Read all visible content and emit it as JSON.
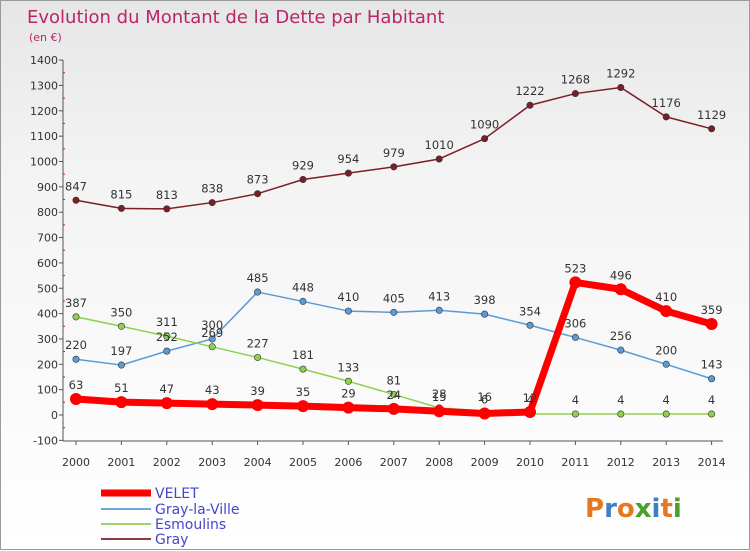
{
  "chart_data": {
    "type": "line",
    "title": "Evolution du Montant de la Dette par Habitant",
    "subtitle": "(en €)",
    "ylim": [
      -100,
      1400
    ],
    "yticks": [
      -100,
      0,
      100,
      200,
      300,
      400,
      500,
      600,
      700,
      800,
      900,
      1000,
      1100,
      1200,
      1300,
      1400
    ],
    "categories": [
      "2000",
      "2001",
      "2002",
      "2003",
      "2004",
      "2005",
      "2006",
      "2007",
      "2008",
      "2009",
      "2010",
      "2011",
      "2012",
      "2013",
      "2014"
    ],
    "grid": false,
    "legend_position": "bottom-left",
    "series": [
      {
        "name": "VELET",
        "color": "#ff0000",
        "weight": "thick",
        "values": [
          63,
          51,
          47,
          43,
          39,
          35,
          29,
          24,
          15,
          6,
          12,
          523,
          496,
          410,
          359
        ],
        "labels": [
          "63",
          "51",
          "47",
          "43",
          "39",
          "35",
          "29",
          "24",
          "15",
          "6",
          "12",
          "523",
          "496",
          "410",
          "359"
        ]
      },
      {
        "name": "Gray-la-Ville",
        "color": "#5b9bd5",
        "weight": "thin",
        "values": [
          220,
          197,
          252,
          300,
          485,
          448,
          410,
          405,
          413,
          398,
          354,
          306,
          256,
          200,
          143
        ],
        "labels": [
          "220",
          "197",
          "252",
          "300",
          "485",
          "448",
          "410",
          "405",
          "413",
          "398",
          "354",
          "306",
          "256",
          "200",
          "143"
        ]
      },
      {
        "name": "Esmoulins",
        "color": "#8fd14f",
        "weight": "thin",
        "values": [
          387,
          350,
          311,
          269,
          227,
          181,
          133,
          81,
          28,
          16,
          4,
          4,
          4,
          4,
          4
        ],
        "labels": [
          "387",
          "350",
          "311",
          "269",
          "227",
          "181",
          "133",
          "81",
          "28",
          "16",
          "4",
          "4",
          "4",
          "4",
          "4"
        ]
      },
      {
        "name": "Gray",
        "color": "#7a1f25",
        "weight": "thin",
        "values": [
          847,
          815,
          813,
          838,
          873,
          929,
          954,
          979,
          1010,
          1090,
          1222,
          1268,
          1292,
          1176,
          1129
        ],
        "labels": [
          "847",
          "815",
          "813",
          "838",
          "873",
          "929",
          "954",
          "979",
          "1010",
          "1090",
          "1222",
          "1268",
          "1292",
          "1176",
          "1129"
        ]
      }
    ]
  },
  "logo": {
    "letters": [
      "P",
      "r",
      "o",
      "x",
      "i",
      "t",
      "i"
    ]
  }
}
